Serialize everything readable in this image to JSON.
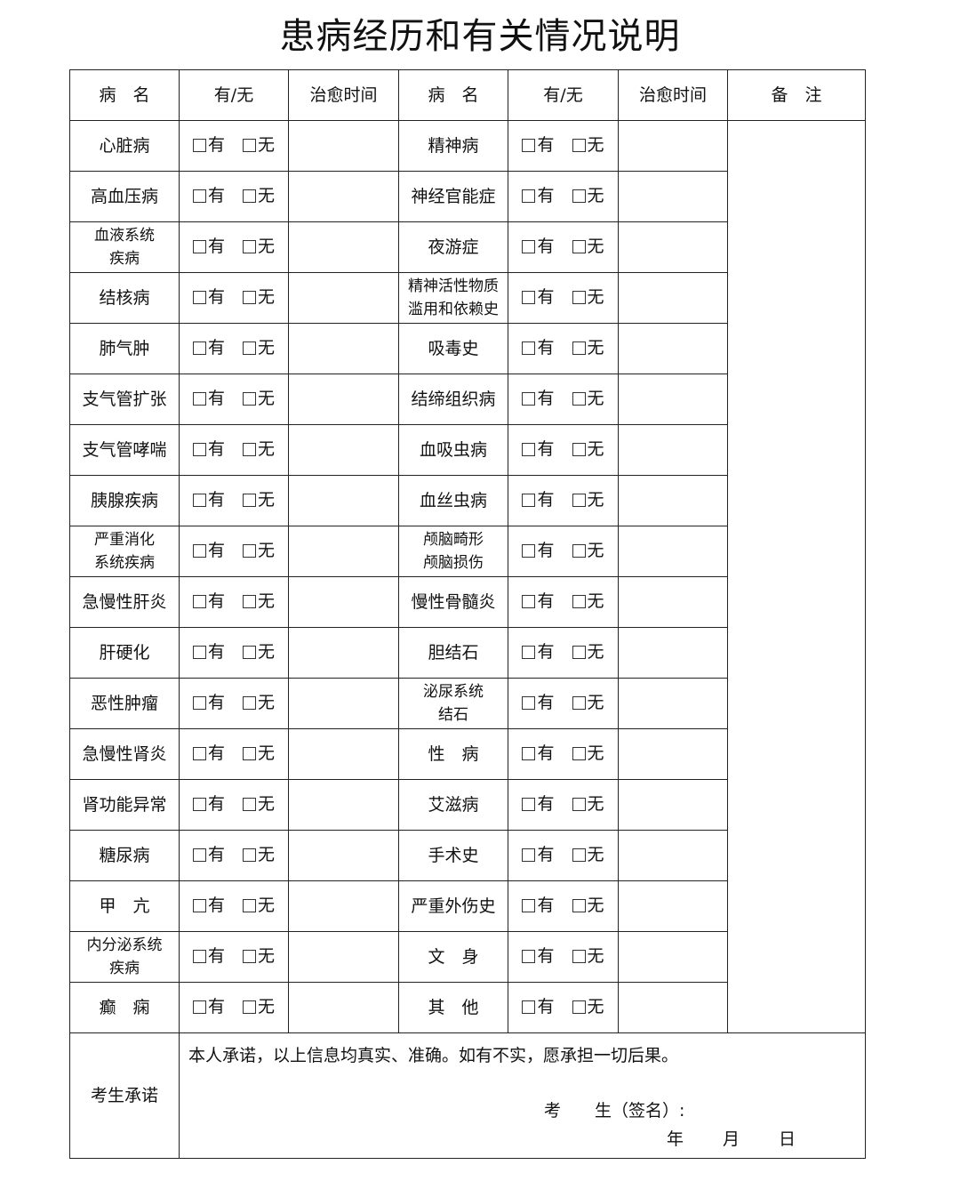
{
  "title": "患病经历和有关情况说明",
  "headers": {
    "disease": "病　名",
    "has": "有/无",
    "cure_time": "治愈时间",
    "remarks": "备　注"
  },
  "options": {
    "yes": "有",
    "no": "无"
  },
  "rows": [
    {
      "left": "心脏病",
      "right": "精神病"
    },
    {
      "left": "高血压病",
      "right": "神经官能症"
    },
    {
      "left": "血液系统\n疾病",
      "right": "夜游症"
    },
    {
      "left": "结核病",
      "right": "精神活性物质\n滥用和依赖史"
    },
    {
      "left": "肺气肿",
      "right": "吸毒史"
    },
    {
      "left": "支气管扩张",
      "right": "结缔组织病"
    },
    {
      "left": "支气管哮喘",
      "right": "血吸虫病"
    },
    {
      "left": "胰腺疾病",
      "right": "血丝虫病"
    },
    {
      "left": "严重消化\n系统疾病",
      "right": "颅脑畸形\n颅脑损伤"
    },
    {
      "left": "急慢性肝炎",
      "right": "慢性骨髓炎"
    },
    {
      "left": "肝硬化",
      "right": "胆结石"
    },
    {
      "left": "恶性肿瘤",
      "right": "泌尿系统\n结石"
    },
    {
      "left": "急慢性肾炎",
      "right": "性　病"
    },
    {
      "left": "肾功能异常",
      "right": "艾滋病"
    },
    {
      "left": "糖尿病",
      "right": "手术史"
    },
    {
      "left": "甲　亢",
      "right": "严重外伤史"
    },
    {
      "left": "内分泌系统\n疾病",
      "right": "文　身"
    },
    {
      "left": "癫　痫",
      "right": "其　他"
    }
  ],
  "pledge": {
    "label": "考生承诺",
    "text": "本人承诺，以上信息均真实、准确。如有不实，愿承担一切后果。",
    "signature": "考　　生（签名）:",
    "year": "年",
    "month": "月",
    "day": "日"
  }
}
